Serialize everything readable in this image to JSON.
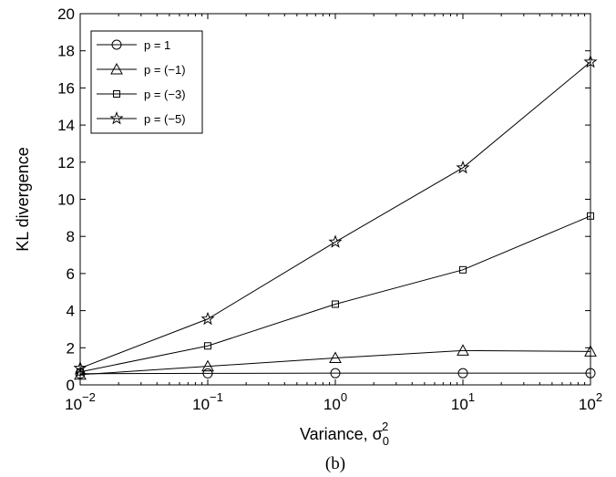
{
  "chart_data": {
    "type": "line",
    "x_scale": "log",
    "x": [
      0.01,
      0.1,
      1,
      10,
      100
    ],
    "x_tick_labels": [
      {
        "base": "10",
        "exp": "−2"
      },
      {
        "base": "10",
        "exp": "−1"
      },
      {
        "base": "10",
        "exp": "0"
      },
      {
        "base": "10",
        "exp": "1"
      },
      {
        "base": "10",
        "exp": "2"
      }
    ],
    "y_ticks": [
      0,
      2,
      4,
      6,
      8,
      10,
      12,
      14,
      16,
      18,
      20
    ],
    "xlim": [
      0.01,
      100
    ],
    "ylim": [
      0,
      20
    ],
    "xlabel": "Variance, σ",
    "xlabel_sub": "0",
    "xlabel_sup": "2",
    "ylabel": "KL divergence",
    "caption": "(b)",
    "grid": false,
    "legend_position": "top-left",
    "series": [
      {
        "name": "p = 1",
        "marker": "circle",
        "values": [
          0.6,
          0.62,
          0.63,
          0.63,
          0.63
        ]
      },
      {
        "name": "p = (−1)",
        "marker": "triangle",
        "values": [
          0.55,
          1.0,
          1.45,
          1.85,
          1.8
        ]
      },
      {
        "name": "p = (−3)",
        "marker": "square",
        "values": [
          0.7,
          2.1,
          4.35,
          6.2,
          9.1
        ]
      },
      {
        "name": "p = (−5)",
        "marker": "star",
        "values": [
          0.9,
          3.55,
          7.7,
          11.7,
          17.4
        ]
      }
    ]
  }
}
